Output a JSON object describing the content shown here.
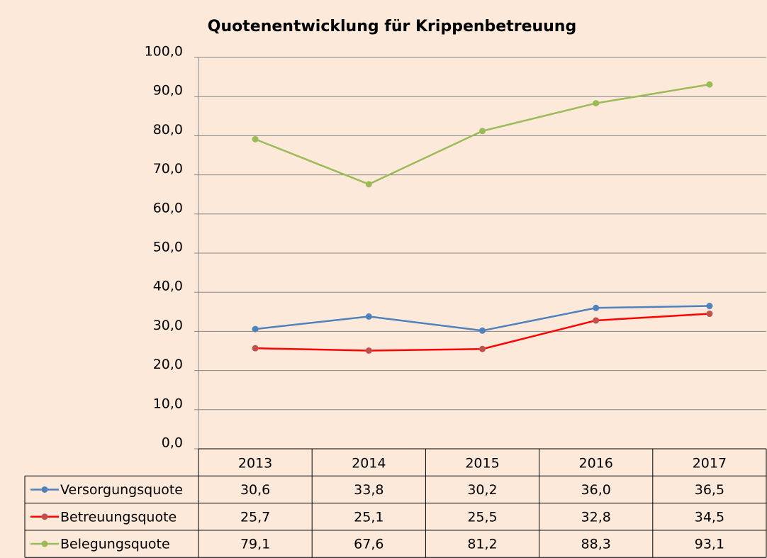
{
  "chart_data": {
    "type": "line",
    "title": "Quotenentwicklung für Krippenbetreuung",
    "categories": [
      "2013",
      "2014",
      "2015",
      "2016",
      "2017"
    ],
    "series": [
      {
        "name": "Versorgungsquote",
        "color": "#4f81bd",
        "marker_color": "#4f81bd",
        "values": [
          30.6,
          33.8,
          30.2,
          36.0,
          36.5
        ],
        "value_labels": [
          "30,6",
          "33,8",
          "30,2",
          "36,0",
          "36,5"
        ]
      },
      {
        "name": "Betreuungsquote",
        "color": "#ff0000",
        "marker_color": "#c0504d",
        "values": [
          25.7,
          25.1,
          25.5,
          32.8,
          34.5
        ],
        "value_labels": [
          "25,7",
          "25,1",
          "25,5",
          "32,8",
          "34,5"
        ]
      },
      {
        "name": "Belegungsquote",
        "color": "#9bbb59",
        "marker_color": "#9bbb59",
        "values": [
          79.1,
          67.6,
          81.2,
          88.3,
          93.1
        ],
        "value_labels": [
          "79,1",
          "67,6",
          "81,2",
          "88,3",
          "93,1"
        ]
      }
    ],
    "ylim": [
      0,
      100
    ],
    "yticks": [
      {
        "value": 0,
        "label": "0,0"
      },
      {
        "value": 10,
        "label": "10,0"
      },
      {
        "value": 20,
        "label": "20,0"
      },
      {
        "value": 30,
        "label": "30,0"
      },
      {
        "value": 40,
        "label": "40,0"
      },
      {
        "value": 50,
        "label": "50,0"
      },
      {
        "value": 60,
        "label": "60,0"
      },
      {
        "value": 70,
        "label": "70,0"
      },
      {
        "value": 80,
        "label": "80,0"
      },
      {
        "value": 90,
        "label": "90,0"
      },
      {
        "value": 100,
        "label": "100,0"
      }
    ],
    "grid": true
  }
}
